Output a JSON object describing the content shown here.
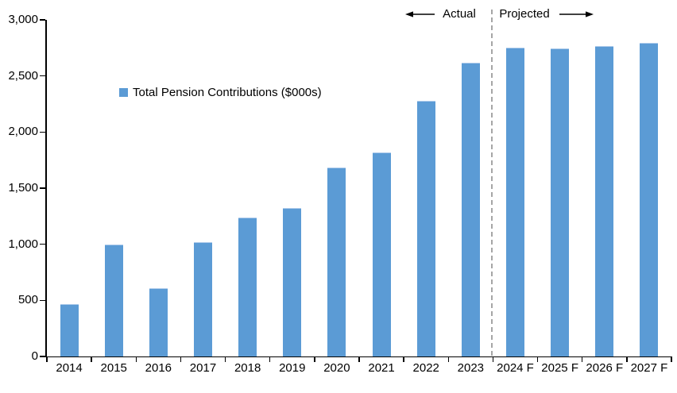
{
  "annotations": {
    "actual_label": "Actual",
    "projected_label": "Projected"
  },
  "legend": {
    "label": "Total Pension Contributions ($000s)"
  },
  "colors": {
    "bar": "#5B9BD5",
    "bar_top_edge": "#AECBEB",
    "divider": "#A6A6A6",
    "axis": "#000000",
    "text": "#000000"
  },
  "chart_data": {
    "type": "bar",
    "title": "",
    "xlabel": "",
    "ylabel": "",
    "legend_entries": [
      "Total Pension Contributions ($000s)"
    ],
    "legend_position": "inside-upper-left",
    "grid": false,
    "categories": [
      "2014",
      "2015",
      "2016",
      "2017",
      "2018",
      "2019",
      "2020",
      "2021",
      "2022",
      "2023",
      "2024 F",
      "2025 F",
      "2026 F",
      "2027 F"
    ],
    "values": [
      470,
      995,
      610,
      1020,
      1235,
      1320,
      1685,
      1815,
      2280,
      2615,
      2750,
      2745,
      2770,
      2795
    ],
    "ylim": [
      0,
      3000
    ],
    "ytick_step": 500,
    "ytick_labels": [
      "0",
      "500",
      "1,000",
      "1,500",
      "2,000",
      "2,500",
      "3,000"
    ],
    "sections": {
      "actual": {
        "label": "Actual",
        "categories": [
          "2014",
          "2015",
          "2016",
          "2017",
          "2018",
          "2019",
          "2020",
          "2021",
          "2022",
          "2023"
        ]
      },
      "projected": {
        "label": "Projected",
        "categories": [
          "2024 F",
          "2025 F",
          "2026 F",
          "2027 F"
        ]
      }
    },
    "divider_after_index": 9
  }
}
